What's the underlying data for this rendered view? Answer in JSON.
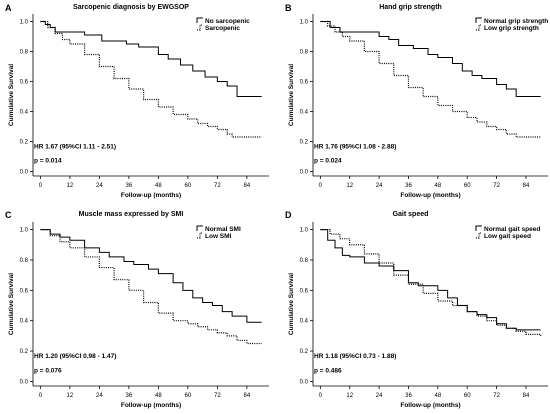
{
  "chart_data": [
    {
      "type": "line",
      "panel": "A",
      "title": "Sarcopenic diagnosis by EWGSOP",
      "xlabel": "Follow-up (months)",
      "ylabel": "Cumulative Survival",
      "xticks": [
        0,
        12,
        24,
        36,
        48,
        60,
        72,
        84
      ],
      "yticks": [
        0.0,
        0.2,
        0.4,
        0.6,
        0.8,
        1.0
      ],
      "xlim": [
        -3,
        93
      ],
      "ylim": [
        -0.03,
        1.05
      ],
      "hr_text": "HR 1.67 (95%CI 1.11 - 2.51)",
      "p_text": "p = 0.014",
      "legend_position": "top-right",
      "series": [
        {
          "name": "No sarcopenic",
          "style": "solid",
          "x": [
            0,
            2,
            4,
            6,
            13,
            18,
            25,
            35,
            40,
            48,
            52,
            57,
            62,
            67,
            72,
            76,
            80,
            90
          ],
          "y": [
            1.0,
            0.98,
            0.96,
            0.93,
            0.93,
            0.91,
            0.87,
            0.85,
            0.83,
            0.78,
            0.75,
            0.71,
            0.67,
            0.63,
            0.6,
            0.57,
            0.5,
            0.5
          ]
        },
        {
          "name": "Sarcopenic",
          "style": "dotted",
          "x": [
            0,
            3,
            6,
            9,
            12,
            18,
            24,
            30,
            36,
            42,
            48,
            54,
            60,
            64,
            68,
            72,
            76,
            78,
            82,
            86,
            90
          ],
          "y": [
            1.0,
            0.96,
            0.92,
            0.88,
            0.85,
            0.78,
            0.7,
            0.62,
            0.55,
            0.48,
            0.43,
            0.38,
            0.35,
            0.32,
            0.3,
            0.28,
            0.25,
            0.23,
            0.23,
            0.23,
            0.23
          ]
        }
      ]
    },
    {
      "type": "line",
      "panel": "B",
      "title": "Hand grip strength",
      "xlabel": "Follow-up (months)",
      "ylabel": "Cumulative Survival",
      "xticks": [
        0,
        12,
        24,
        36,
        48,
        60,
        72,
        84
      ],
      "yticks": [
        0.0,
        0.2,
        0.4,
        0.6,
        0.8,
        1.0
      ],
      "xlim": [
        -3,
        93
      ],
      "ylim": [
        -0.03,
        1.05
      ],
      "hr_text": "HR 1.76 (95%CI 1.08 - 2.88)",
      "p_text": "p = 0.024",
      "legend_position": "top-right",
      "series": [
        {
          "name": "Normal grip strength",
          "style": "solid",
          "x": [
            0,
            4,
            8,
            12,
            20,
            24,
            28,
            32,
            38,
            44,
            48,
            54,
            58,
            62,
            66,
            72,
            76,
            80,
            90
          ],
          "y": [
            1.0,
            0.96,
            0.93,
            0.93,
            0.93,
            0.9,
            0.88,
            0.84,
            0.82,
            0.78,
            0.76,
            0.72,
            0.67,
            0.64,
            0.62,
            0.58,
            0.55,
            0.5,
            0.5
          ]
        },
        {
          "name": "Low grip strength",
          "style": "dotted",
          "x": [
            0,
            3,
            6,
            9,
            12,
            18,
            24,
            30,
            36,
            42,
            48,
            54,
            60,
            64,
            68,
            72,
            76,
            80,
            84,
            90
          ],
          "y": [
            1.0,
            0.97,
            0.93,
            0.9,
            0.87,
            0.8,
            0.72,
            0.64,
            0.56,
            0.5,
            0.44,
            0.4,
            0.36,
            0.33,
            0.3,
            0.28,
            0.25,
            0.23,
            0.23,
            0.23
          ]
        }
      ]
    },
    {
      "type": "line",
      "panel": "C",
      "title": "Muscle mass expressed by SMI",
      "xlabel": "Follow-up (months)",
      "ylabel": "Cumulative Survival",
      "xticks": [
        0,
        12,
        24,
        36,
        48,
        60,
        72,
        84
      ],
      "yticks": [
        0.0,
        0.2,
        0.4,
        0.6,
        0.8,
        1.0
      ],
      "xlim": [
        -3,
        93
      ],
      "ylim": [
        -0.03,
        1.05
      ],
      "hr_text": "HR 1.20 (95%CI 0.98 - 1.47)",
      "p_text": "p = 0.076",
      "legend_position": "top-right",
      "series": [
        {
          "name": "Normal SMI",
          "style": "solid",
          "x": [
            0,
            4,
            8,
            12,
            18,
            24,
            28,
            34,
            38,
            44,
            48,
            54,
            58,
            62,
            66,
            70,
            74,
            78,
            84,
            90
          ],
          "y": [
            1.0,
            0.97,
            0.95,
            0.93,
            0.88,
            0.85,
            0.82,
            0.79,
            0.77,
            0.74,
            0.71,
            0.65,
            0.6,
            0.55,
            0.52,
            0.5,
            0.46,
            0.43,
            0.39,
            0.39
          ]
        },
        {
          "name": "Low SMI",
          "style": "dotted",
          "x": [
            0,
            4,
            8,
            12,
            18,
            24,
            30,
            36,
            42,
            48,
            54,
            60,
            64,
            68,
            72,
            76,
            80,
            84,
            90
          ],
          "y": [
            1.0,
            0.96,
            0.92,
            0.88,
            0.82,
            0.75,
            0.67,
            0.6,
            0.52,
            0.45,
            0.4,
            0.38,
            0.36,
            0.34,
            0.32,
            0.3,
            0.27,
            0.25,
            0.25
          ]
        }
      ]
    },
    {
      "type": "line",
      "panel": "D",
      "title": "Gait speed",
      "xlabel": "Follow-up (months)",
      "ylabel": "Cumulative Survival",
      "xticks": [
        0,
        12,
        24,
        36,
        48,
        60,
        72,
        84
      ],
      "yticks": [
        0.0,
        0.2,
        0.4,
        0.6,
        0.8,
        1.0
      ],
      "xlim": [
        -3,
        93
      ],
      "ylim": [
        -0.03,
        1.05
      ],
      "hr_text": "HR 1.18 (95%CI 0.73 - 1.88)",
      "p_text": "p = 0.486",
      "legend_position": "top-right",
      "series": [
        {
          "name": "Normal gait speed",
          "style": "solid",
          "x": [
            0,
            3,
            6,
            9,
            12,
            18,
            24,
            30,
            36,
            40,
            48,
            52,
            56,
            60,
            64,
            68,
            72,
            76,
            80,
            84,
            90
          ],
          "y": [
            1.0,
            0.93,
            0.88,
            0.83,
            0.82,
            0.78,
            0.76,
            0.73,
            0.65,
            0.63,
            0.6,
            0.55,
            0.5,
            0.46,
            0.44,
            0.42,
            0.38,
            0.35,
            0.34,
            0.34,
            0.34
          ]
        },
        {
          "name": "Low gait speed",
          "style": "dotted",
          "x": [
            0,
            4,
            8,
            12,
            18,
            24,
            30,
            36,
            42,
            48,
            54,
            60,
            64,
            68,
            72,
            76,
            80,
            84,
            90
          ],
          "y": [
            1.0,
            0.97,
            0.94,
            0.9,
            0.84,
            0.78,
            0.7,
            0.64,
            0.58,
            0.53,
            0.5,
            0.46,
            0.43,
            0.4,
            0.37,
            0.35,
            0.33,
            0.31,
            0.3
          ]
        }
      ]
    }
  ]
}
